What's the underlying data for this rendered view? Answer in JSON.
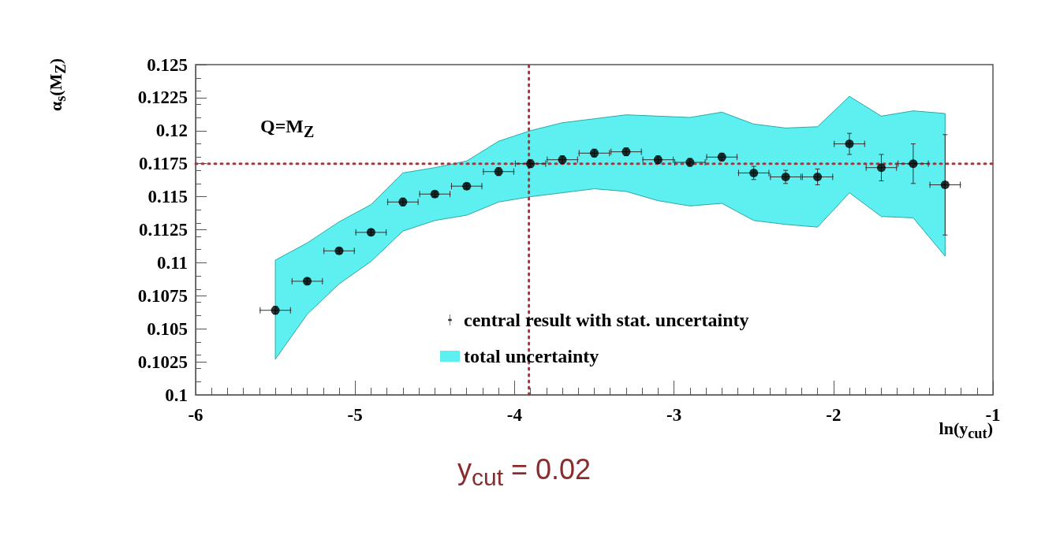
{
  "chart_data": {
    "type": "scatter",
    "xlabel": "ln(y$_{cut}$)",
    "ylabel": "α$_{s}$(M$_{Z}$)",
    "x": [
      -5.5,
      -5.3,
      -5.1,
      -4.9,
      -4.7,
      -4.5,
      -4.3,
      -4.1,
      -3.9,
      -3.7,
      -3.5,
      -3.3,
      -3.1,
      -2.9,
      -2.7,
      -2.5,
      -2.3,
      -2.1,
      -1.9,
      -1.7,
      -1.5,
      -1.3
    ],
    "series": [
      {
        "name": "central result with stat. uncertainty",
        "color": "#000000",
        "values": [
          0.1064,
          0.1086,
          0.1109,
          0.1123,
          0.1146,
          0.1152,
          0.1158,
          0.1169,
          0.1175,
          0.1178,
          0.1183,
          0.1184,
          0.1178,
          0.1176,
          0.118,
          0.1168,
          0.1165,
          0.1165,
          0.119,
          0.1172,
          0.1175,
          0.1159
        ],
        "errors": [
          0.0003,
          0.0002,
          0.0002,
          0.0002,
          0.0003,
          0.0002,
          0.0002,
          0.0003,
          0.0003,
          0.0003,
          0.0003,
          0.0003,
          0.0003,
          0.0003,
          0.0003,
          0.0005,
          0.0005,
          0.0006,
          0.0008,
          0.001,
          0.0015,
          0.0038
        ],
        "xerrors": [
          0.1,
          0.1,
          0.1,
          0.1,
          0.1,
          0.1,
          0.1,
          0.1,
          0.1,
          0.1,
          0.1,
          0.1,
          0.1,
          0.1,
          0.1,
          0.1,
          0.1,
          0.1,
          0.1,
          0.1,
          0.1,
          0.1
        ]
      },
      {
        "name": "total uncertainty",
        "type": "area",
        "color": "#5ef0f0",
        "values": [
          null,
          null,
          null,
          null,
          null,
          null,
          null,
          null,
          null,
          null,
          null,
          null,
          null,
          null,
          null,
          null,
          null,
          null,
          null,
          null,
          null,
          null
        ],
        "lower": [
          0.1027,
          0.1061,
          0.1084,
          0.1101,
          0.1124,
          0.1132,
          0.1136,
          0.1146,
          0.115,
          0.1153,
          0.1156,
          0.1154,
          0.1147,
          0.1143,
          0.1145,
          0.1132,
          0.1129,
          0.1127,
          0.1153,
          0.1135,
          0.1134,
          0.1105
        ],
        "upper": [
          0.1102,
          0.1115,
          0.1131,
          0.1144,
          0.1168,
          0.1172,
          0.1177,
          0.1192,
          0.12,
          0.1206,
          0.1209,
          0.1212,
          0.1211,
          0.121,
          0.1214,
          0.1205,
          0.1202,
          0.1203,
          0.1226,
          0.1211,
          0.1215,
          0.1213
        ]
      }
    ],
    "xlim": [
      -6,
      -1
    ],
    "xticks": [
      -6,
      -5,
      -4,
      -3,
      -2,
      -1
    ],
    "ylim": [
      0.1,
      0.125
    ],
    "yticks": [
      0.1,
      0.1025,
      0.105,
      0.1075,
      0.11,
      0.1125,
      0.115,
      0.1175,
      0.12,
      0.1225,
      0.125
    ],
    "ref_lines": [
      {
        "axis": "y",
        "value": 0.1175,
        "color": "#a3393f",
        "line_style": "dotted"
      },
      {
        "axis": "x",
        "value": -3.91,
        "color": "#a3393f",
        "line_style": "dotted"
      }
    ],
    "annotations": [
      "Q=M$_{Z}$",
      "y$_{cut}$ = 0.02"
    ],
    "legend": "bottom right",
    "marker": "circle",
    "grid": false
  }
}
